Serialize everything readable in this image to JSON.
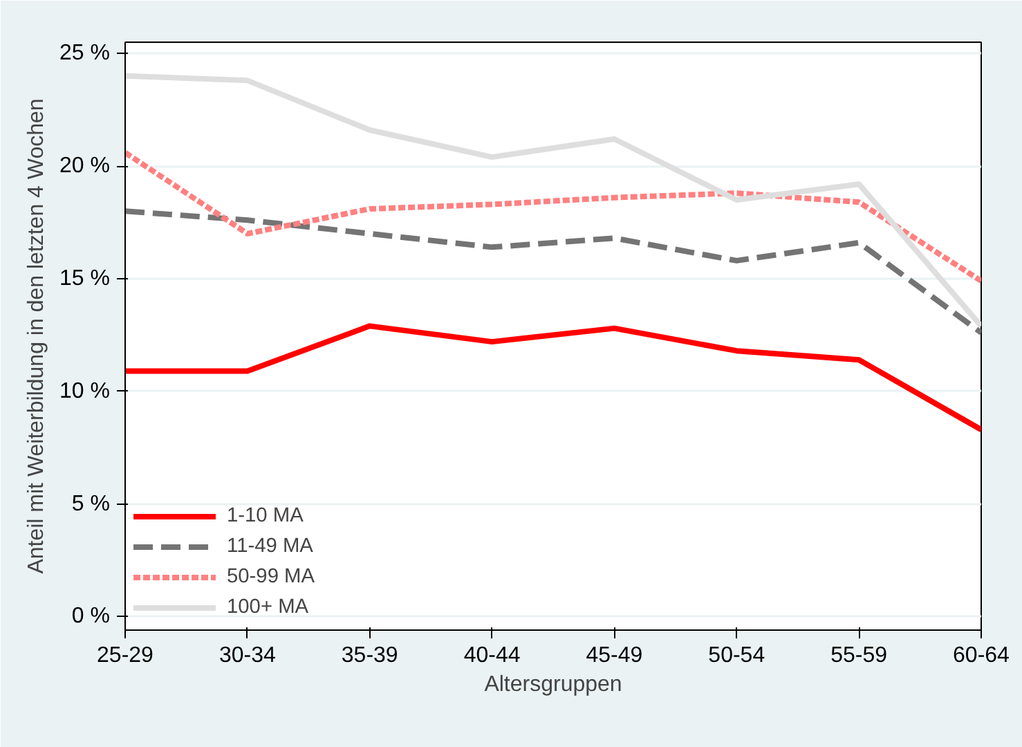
{
  "chart_data": {
    "type": "line",
    "xlabel": "Altersgruppen",
    "ylabel": "Anteil mit Weiterbildung in den letzten 4 Wochen",
    "categories": [
      "25-29",
      "30-34",
      "35-39",
      "40-44",
      "45-49",
      "50-54",
      "55-59",
      "60-64"
    ],
    "ylim": [
      -0.6,
      25.5
    ],
    "yticks": [
      {
        "value": 0,
        "label": "0 %"
      },
      {
        "value": 5,
        "label": "5 %"
      },
      {
        "value": 10,
        "label": "10 %"
      },
      {
        "value": 15,
        "label": "15 %"
      },
      {
        "value": 20,
        "label": "20 %"
      },
      {
        "value": 25,
        "label": "25 %"
      }
    ],
    "grid": "y",
    "legend": "bottom left",
    "marker": "none",
    "series": [
      {
        "name": "1-10 MA",
        "color": "#ff0000",
        "line_style": "solid",
        "values": [
          10.9,
          10.9,
          12.9,
          12.2,
          12.8,
          11.8,
          11.4,
          8.3
        ]
      },
      {
        "name": "11-49 MA",
        "color": "#747474",
        "line_style": "dashed",
        "values": [
          18.0,
          17.6,
          17.0,
          16.4,
          16.8,
          15.8,
          16.6,
          12.6
        ]
      },
      {
        "name": "50-99 MA",
        "color": "#ff8080",
        "line_style": "dotted",
        "values": [
          20.6,
          17.0,
          18.1,
          18.3,
          18.6,
          18.8,
          18.4,
          14.9
        ]
      },
      {
        "name": "100+ MA",
        "color": "#dedede",
        "line_style": "solid",
        "values": [
          24.0,
          23.8,
          21.6,
          20.4,
          21.2,
          18.5,
          19.2,
          12.9
        ]
      }
    ]
  }
}
